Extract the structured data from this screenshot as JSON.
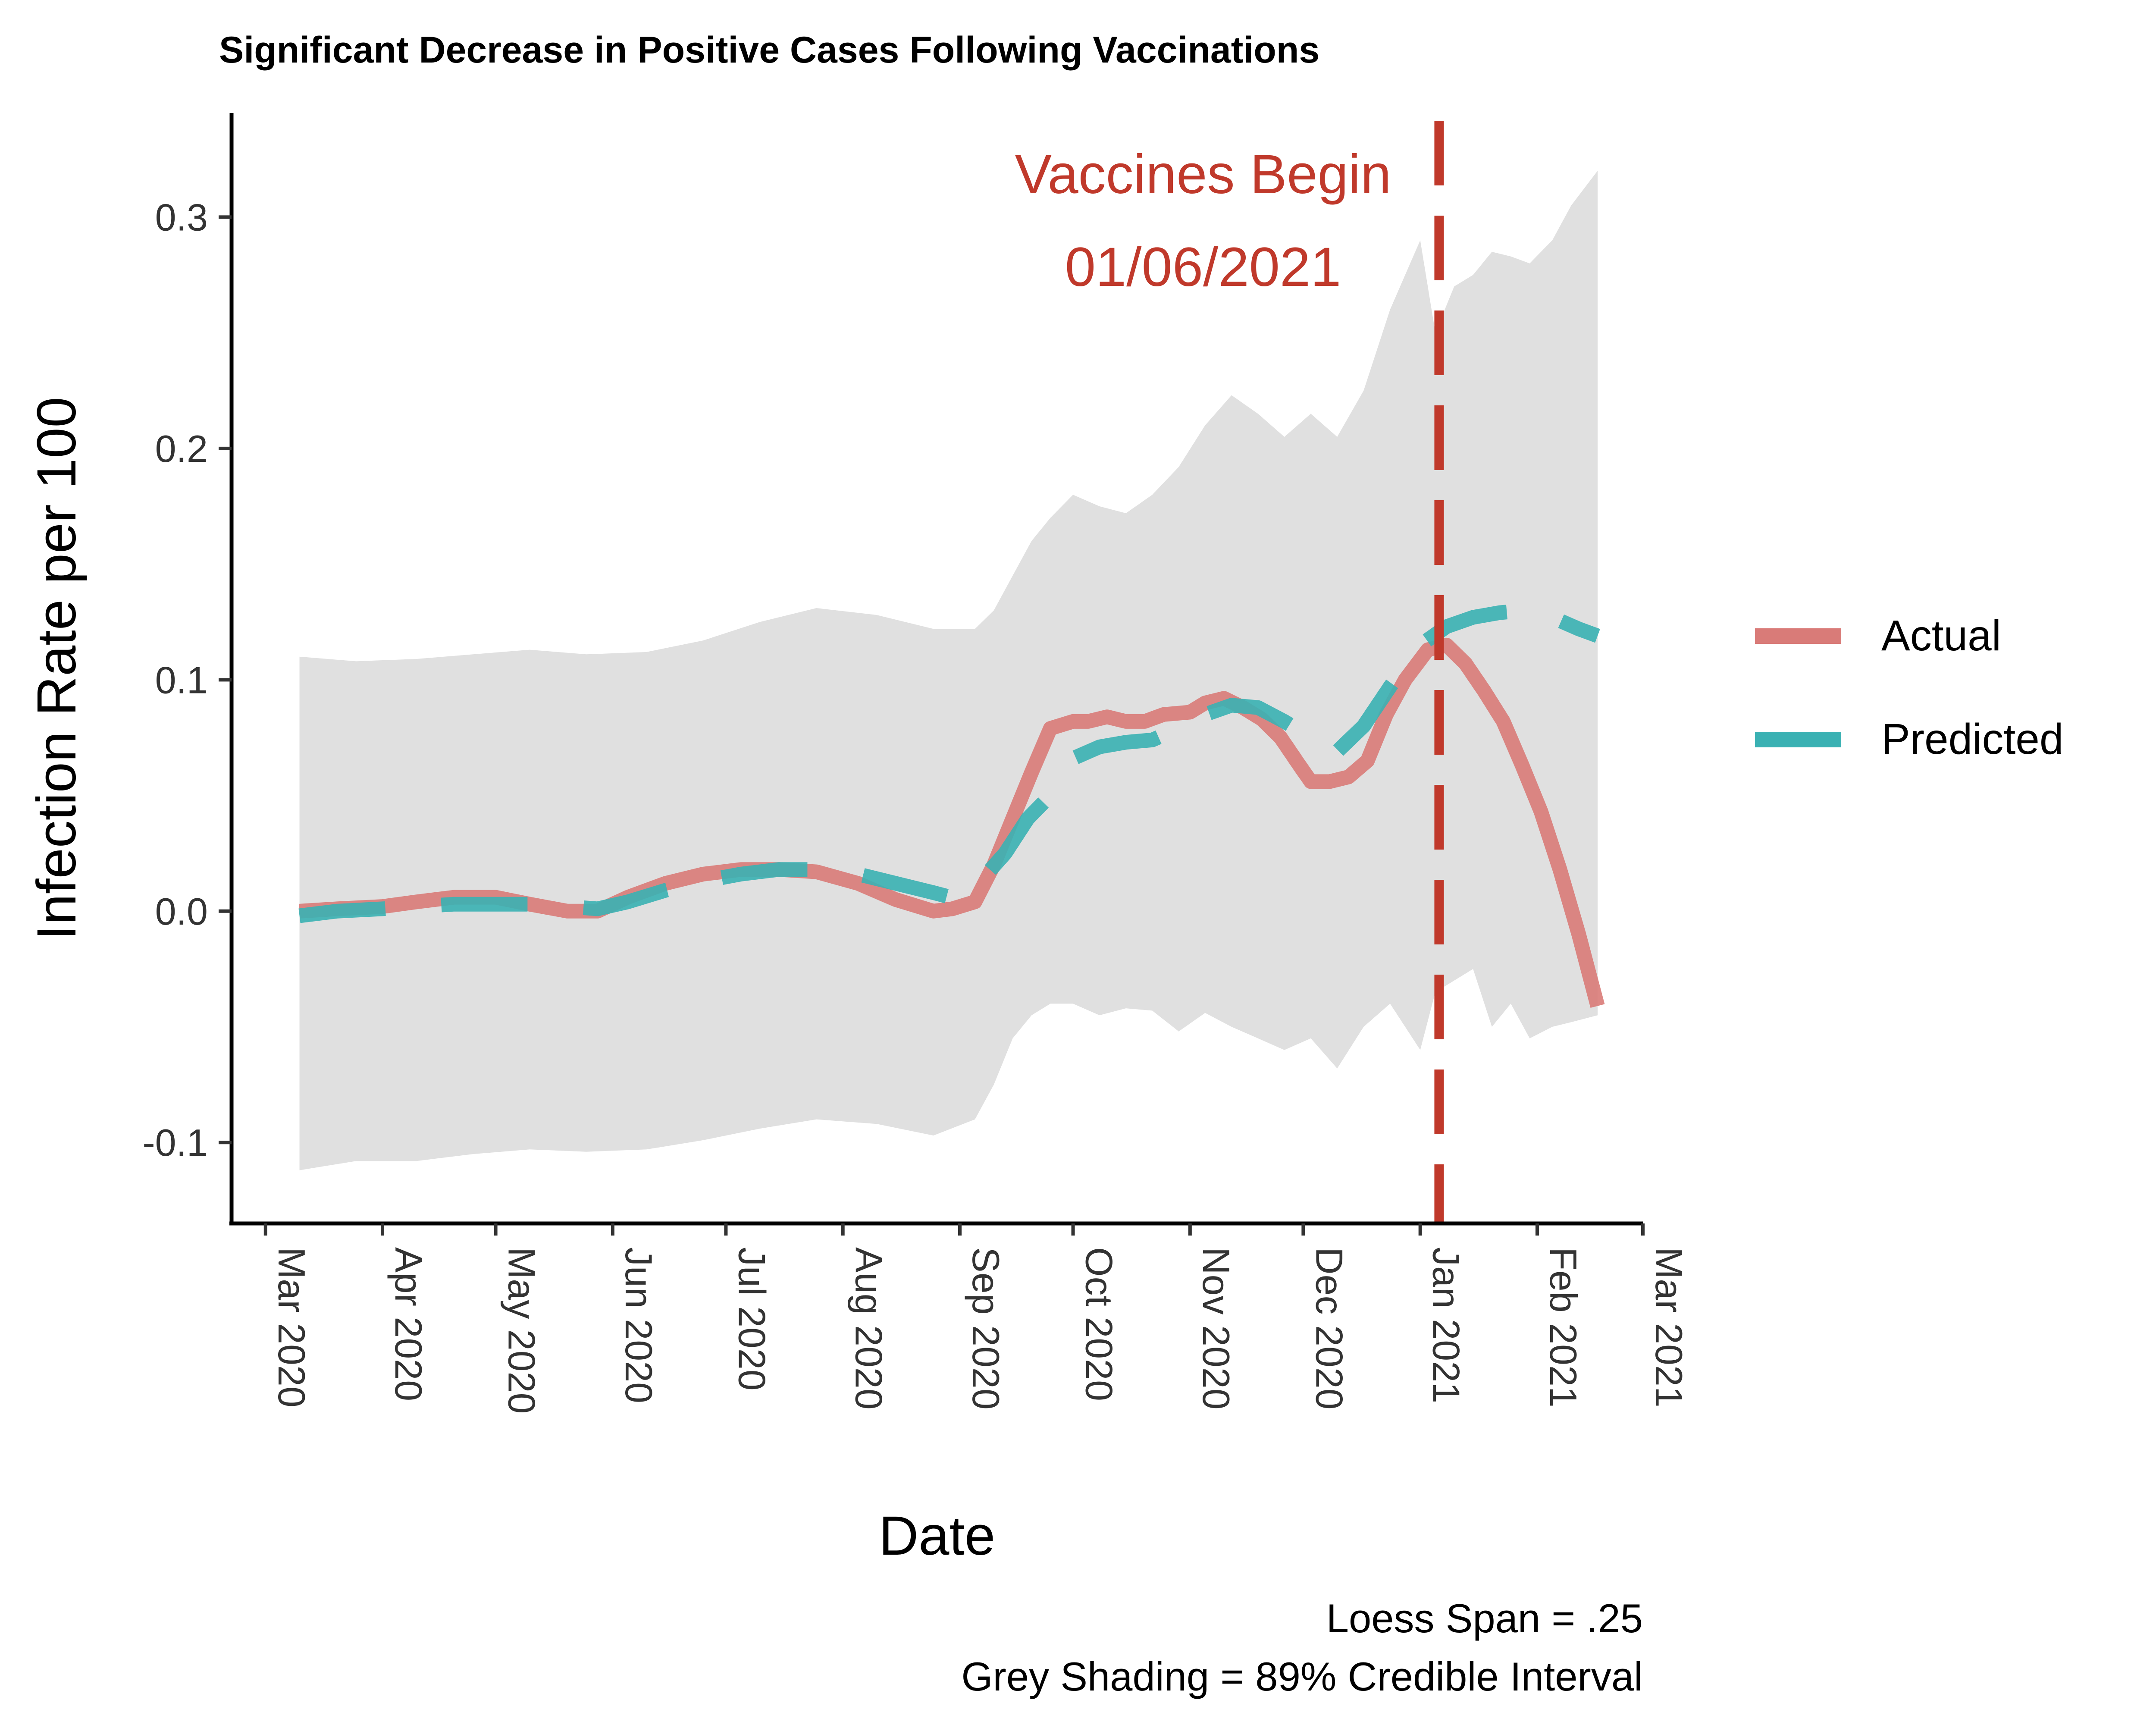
{
  "chart_data": {
    "type": "line",
    "title": "Significant Decrease in Positive Cases Following Vaccinations",
    "xlabel": "Date",
    "ylabel": "Infection Rate per 100",
    "xlim": [
      "2020-02-21",
      "2021-03-01"
    ],
    "ylim": [
      -0.135,
      0.345
    ],
    "x_ticks": [
      "Mar 2020",
      "Apr 2020",
      "May 2020",
      "Jun 2020",
      "Jul 2020",
      "Aug 2020",
      "Sep 2020",
      "Oct 2020",
      "Nov 2020",
      "Dec 2020",
      "Jan 2021",
      "Feb 2021",
      "Mar 2021"
    ],
    "x_tick_dates": [
      "2020-03-01",
      "2020-04-01",
      "2020-05-01",
      "2020-06-01",
      "2020-07-01",
      "2020-08-01",
      "2020-09-01",
      "2020-10-01",
      "2020-11-01",
      "2020-12-01",
      "2021-01-01",
      "2021-02-01",
      "2021-03-01"
    ],
    "y_ticks": [
      -0.1,
      0.0,
      0.1,
      0.2,
      0.3
    ],
    "y_tick_labels": [
      "-0.1",
      "0.0",
      "0.1",
      "0.2",
      "0.3"
    ],
    "grid": false,
    "legend": {
      "position": "right",
      "entries": [
        "Actual",
        "Predicted"
      ]
    },
    "series": [
      {
        "name": "Actual",
        "color": "#d97b78",
        "style": "solid",
        "x": [
          "2020-03-10",
          "2020-03-20",
          "2020-04-01",
          "2020-04-10",
          "2020-04-20",
          "2020-05-01",
          "2020-05-10",
          "2020-05-20",
          "2020-05-28",
          "2020-06-05",
          "2020-06-15",
          "2020-06-25",
          "2020-07-05",
          "2020-07-15",
          "2020-07-25",
          "2020-08-05",
          "2020-08-15",
          "2020-08-25",
          "2020-08-30",
          "2020-09-05",
          "2020-09-10",
          "2020-09-15",
          "2020-09-20",
          "2020-09-25",
          "2020-10-01",
          "2020-10-05",
          "2020-10-10",
          "2020-10-15",
          "2020-10-20",
          "2020-10-25",
          "2020-11-01",
          "2020-11-05",
          "2020-11-10",
          "2020-11-15",
          "2020-11-20",
          "2020-11-25",
          "2020-11-30",
          "2020-12-03",
          "2020-12-08",
          "2020-12-13",
          "2020-12-18",
          "2020-12-23",
          "2020-12-28",
          "2021-01-03",
          "2021-01-08",
          "2021-01-13",
          "2021-01-18",
          "2021-01-23",
          "2021-01-28",
          "2021-02-02",
          "2021-02-07",
          "2021-02-12",
          "2021-02-17"
        ],
        "y": [
          0.0,
          0.001,
          0.002,
          0.004,
          0.006,
          0.006,
          0.003,
          0.0,
          0.0,
          0.006,
          0.012,
          0.016,
          0.018,
          0.018,
          0.017,
          0.012,
          0.005,
          0.0,
          0.001,
          0.004,
          0.02,
          0.04,
          0.06,
          0.079,
          0.082,
          0.082,
          0.084,
          0.082,
          0.082,
          0.085,
          0.086,
          0.09,
          0.092,
          0.088,
          0.083,
          0.075,
          0.063,
          0.056,
          0.056,
          0.058,
          0.065,
          0.085,
          0.1,
          0.113,
          0.115,
          0.107,
          0.095,
          0.082,
          0.063,
          0.043,
          0.018,
          -0.01,
          -0.041
        ]
      },
      {
        "name": "Predicted",
        "color": "#3ab1b3",
        "style": "dashed",
        "x": [
          "2020-03-10",
          "2020-03-20",
          "2020-04-01",
          "2020-04-10",
          "2020-04-20",
          "2020-05-01",
          "2020-05-10",
          "2020-05-20",
          "2020-05-28",
          "2020-06-05",
          "2020-06-15",
          "2020-06-25",
          "2020-07-05",
          "2020-07-15",
          "2020-07-25",
          "2020-08-05",
          "2020-08-15",
          "2020-08-25",
          "2020-09-01",
          "2020-09-07",
          "2020-09-13",
          "2020-09-19",
          "2020-09-25",
          "2020-10-01",
          "2020-10-08",
          "2020-10-15",
          "2020-10-22",
          "2020-10-29",
          "2020-11-05",
          "2020-11-12",
          "2020-11-19",
          "2020-11-26",
          "2020-12-03",
          "2020-12-10",
          "2020-12-17",
          "2020-12-24",
          "2021-01-01",
          "2021-01-08",
          "2021-01-15",
          "2021-01-22",
          "2021-01-29",
          "2021-02-05",
          "2021-02-12",
          "2021-02-17"
        ],
        "y": [
          -0.002,
          0.0,
          0.001,
          0.002,
          0.003,
          0.003,
          0.003,
          0.002,
          0.001,
          0.004,
          0.009,
          0.013,
          0.016,
          0.018,
          0.018,
          0.016,
          0.012,
          0.008,
          0.005,
          0.014,
          0.025,
          0.04,
          0.05,
          0.066,
          0.071,
          0.073,
          0.074,
          0.079,
          0.085,
          0.089,
          0.088,
          0.082,
          0.075,
          0.069,
          0.08,
          0.097,
          0.115,
          0.123,
          0.127,
          0.129,
          0.13,
          0.127,
          0.122,
          0.119
        ]
      }
    ],
    "interval": {
      "label": "89% Credible Interval",
      "color": "#e0e0e0",
      "x": [
        "2020-03-10",
        "2020-03-25",
        "2020-04-10",
        "2020-04-25",
        "2020-05-10",
        "2020-05-25",
        "2020-06-10",
        "2020-06-25",
        "2020-07-10",
        "2020-07-25",
        "2020-08-10",
        "2020-08-25",
        "2020-09-05",
        "2020-09-10",
        "2020-09-15",
        "2020-09-20",
        "2020-09-25",
        "2020-10-01",
        "2020-10-08",
        "2020-10-15",
        "2020-10-22",
        "2020-10-29",
        "2020-11-05",
        "2020-11-12",
        "2020-11-19",
        "2020-11-26",
        "2020-12-03",
        "2020-12-10",
        "2020-12-17",
        "2020-12-24",
        "2021-01-01",
        "2021-01-05",
        "2021-01-10",
        "2021-01-15",
        "2021-01-20",
        "2021-01-25",
        "2021-01-30",
        "2021-02-05",
        "2021-02-10",
        "2021-02-17"
      ],
      "upper": [
        0.11,
        0.108,
        0.109,
        0.111,
        0.113,
        0.111,
        0.112,
        0.117,
        0.125,
        0.131,
        0.128,
        0.122,
        0.122,
        0.13,
        0.145,
        0.16,
        0.17,
        0.18,
        0.175,
        0.172,
        0.18,
        0.192,
        0.21,
        0.223,
        0.215,
        0.205,
        0.215,
        0.205,
        0.225,
        0.26,
        0.29,
        0.25,
        0.27,
        0.275,
        0.285,
        0.283,
        0.28,
        0.29,
        0.305,
        0.32
      ],
      "lower": [
        -0.112,
        -0.108,
        -0.108,
        -0.105,
        -0.103,
        -0.104,
        -0.103,
        -0.099,
        -0.094,
        -0.09,
        -0.092,
        -0.097,
        -0.09,
        -0.075,
        -0.055,
        -0.045,
        -0.04,
        -0.04,
        -0.045,
        -0.042,
        -0.043,
        -0.052,
        -0.044,
        -0.05,
        -0.055,
        -0.06,
        -0.055,
        -0.068,
        -0.05,
        -0.04,
        -0.06,
        -0.035,
        -0.03,
        -0.025,
        -0.05,
        -0.04,
        -0.055,
        -0.05,
        -0.048,
        -0.045
      ]
    },
    "annotations": [
      {
        "type": "vline",
        "x": "2021-01-06",
        "color": "#c0392b",
        "style": "dashed",
        "label_lines": [
          "Vaccines Begin",
          "01/06/2021"
        ]
      }
    ],
    "caption_lines": [
      "Loess Span = .25",
      "Grey Shading = 89% Credible Interval"
    ]
  }
}
